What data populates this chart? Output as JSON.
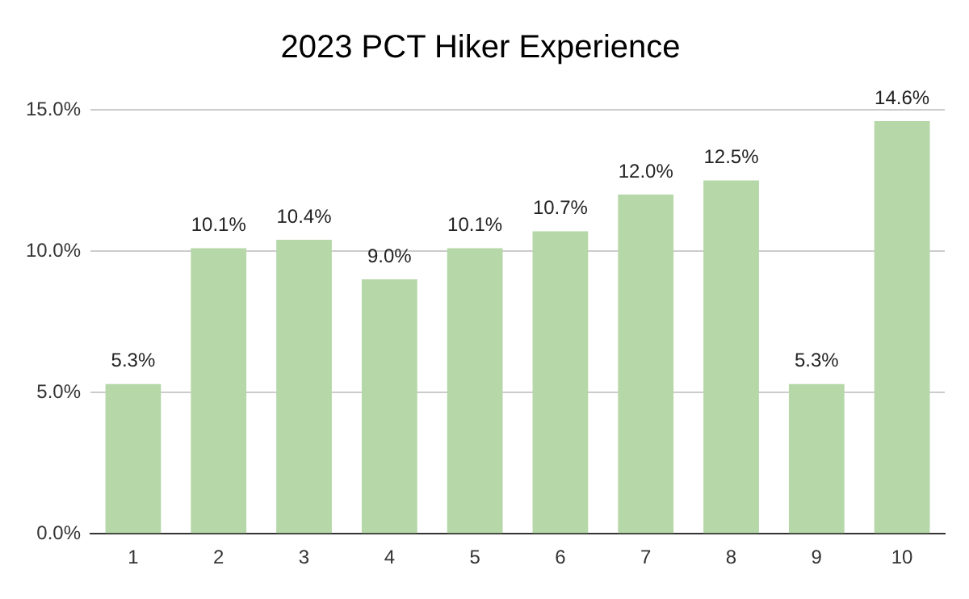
{
  "chart_data": {
    "type": "bar",
    "title": "2023 PCT Hiker Experience",
    "categories": [
      "1",
      "2",
      "3",
      "4",
      "5",
      "6",
      "7",
      "8",
      "9",
      "10"
    ],
    "values": [
      5.3,
      10.1,
      10.4,
      9.0,
      10.1,
      10.7,
      12.0,
      12.5,
      5.3,
      14.6
    ],
    "value_labels": [
      "5.3%",
      "10.1%",
      "10.4%",
      "9.0%",
      "10.1%",
      "10.7%",
      "12.0%",
      "12.5%",
      "5.3%",
      "14.6%"
    ],
    "color": "#b6d7a8",
    "ylim": [
      0,
      15
    ],
    "yticks": [
      {
        "value": 0,
        "label": "0.0%"
      },
      {
        "value": 5,
        "label": "5.0%"
      },
      {
        "value": 10,
        "label": "10.0%"
      },
      {
        "value": 15,
        "label": "15.0%"
      }
    ],
    "grid": "y",
    "legend": false
  }
}
